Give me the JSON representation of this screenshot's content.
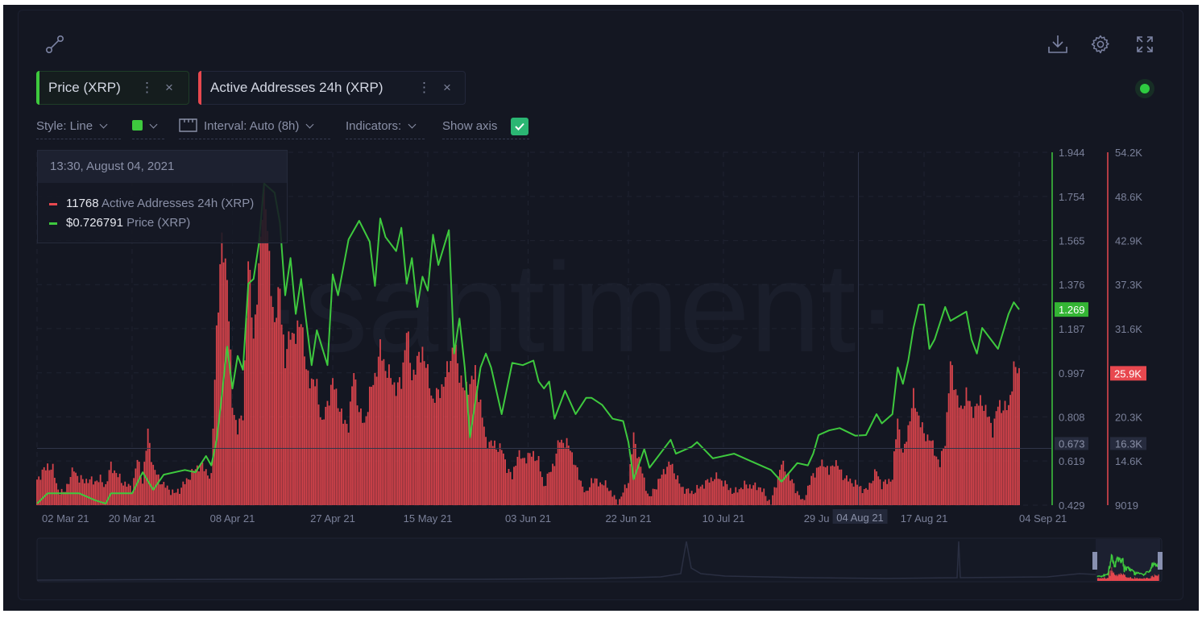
{
  "toolbar": {
    "tabs": [
      {
        "label": "Price (XRP)",
        "color": "#3ec93e"
      },
      {
        "label": "Active Addresses 24h (XRP)",
        "color": "#e8484f"
      }
    ],
    "more_glyph": "⋮",
    "close_glyph": "×",
    "style_label": "Style: Line",
    "series_color": "#3ec93e",
    "interval_label": "Interval: Auto (8h)",
    "indicators_label": "Indicators:",
    "show_axis_label": "Show axis",
    "show_axis_checked": true,
    "icons": [
      "connect-icon",
      "download-icon",
      "gear-icon",
      "fullscreen-icon",
      "status-dot-icon"
    ],
    "status_color": "#2ecc40"
  },
  "watermark": "·santiment·",
  "tooltip": {
    "date": "13:30, August 04, 2021",
    "rows": [
      {
        "value": "11768",
        "name": "Active Addresses 24h (XRP)",
        "color": "#e8484f"
      },
      {
        "value": "$0.726791",
        "name": "Price (XRP)",
        "color": "#3ec93e"
      }
    ]
  },
  "crosshair": {
    "date_label": "04 Aug 21",
    "price_label": "0.673",
    "active_label": "16.3K"
  },
  "chart_data": {
    "type": "line+bar",
    "title": "",
    "x_range": [
      "2021-03-02",
      "2021-09-04"
    ],
    "x_ticks": [
      {
        "date": "2021-03-02",
        "label": "02 Mar 21"
      },
      {
        "date": "2021-03-20",
        "label": "20 Mar 21"
      },
      {
        "date": "2021-04-08",
        "label": "08 Apr 21"
      },
      {
        "date": "2021-04-27",
        "label": "27 Apr 21"
      },
      {
        "date": "2021-05-15",
        "label": "15 May 21"
      },
      {
        "date": "2021-06-03",
        "label": "03 Jun 21"
      },
      {
        "date": "2021-06-22",
        "label": "22 Jun 21"
      },
      {
        "date": "2021-07-10",
        "label": "10 Jul 21"
      },
      {
        "date": "2021-07-29",
        "label": "29 Ju"
      },
      {
        "date": "2021-08-17",
        "label": "17 Aug 21"
      },
      {
        "date": "2021-09-04",
        "label": "04 Sep 21"
      }
    ],
    "grid": true,
    "series": [
      {
        "name": "Price (XRP)",
        "type": "line",
        "color": "#3ec93e",
        "axis": "left-of-right",
        "ylim": [
          0.429,
          1.944
        ],
        "ticks": [
          "1.944",
          "1.754",
          "1.565",
          "1.376",
          "1.187",
          "0.997",
          "0.808",
          "0.619",
          "0.429"
        ],
        "last_label": "1.269",
        "points": [
          [
            "2021-03-02",
            0.436
          ],
          [
            "2021-03-04",
            0.48
          ],
          [
            "2021-03-10",
            0.48
          ],
          [
            "2021-03-13",
            0.45
          ],
          [
            "2021-03-15",
            0.436
          ],
          [
            "2021-03-16",
            0.48
          ],
          [
            "2021-03-20",
            0.48
          ],
          [
            "2021-03-22",
            0.57
          ],
          [
            "2021-03-24",
            0.495
          ],
          [
            "2021-03-26",
            0.56
          ],
          [
            "2021-03-30",
            0.58
          ],
          [
            "2021-04-01",
            0.57
          ],
          [
            "2021-04-03",
            0.64
          ],
          [
            "2021-04-04",
            0.6
          ],
          [
            "2021-04-05",
            0.706
          ],
          [
            "2021-04-06",
            0.9
          ],
          [
            "2021-04-07",
            1.11
          ],
          [
            "2021-04-08",
            0.93
          ],
          [
            "2021-04-09",
            1.07
          ],
          [
            "2021-04-10",
            1.01
          ],
          [
            "2021-04-11",
            1.38
          ],
          [
            "2021-04-12",
            1.4
          ],
          [
            "2021-04-13",
            1.55
          ],
          [
            "2021-04-14",
            1.81
          ],
          [
            "2021-04-16",
            1.77
          ],
          [
            "2021-04-17",
            1.64
          ],
          [
            "2021-04-18",
            1.33
          ],
          [
            "2021-04-19",
            1.49
          ],
          [
            "2021-04-20",
            1.25
          ],
          [
            "2021-04-21",
            1.4
          ],
          [
            "2021-04-23",
            1.03
          ],
          [
            "2021-04-24",
            1.18
          ],
          [
            "2021-04-26",
            1.03
          ],
          [
            "2021-04-27",
            1.42
          ],
          [
            "2021-04-28",
            1.33
          ],
          [
            "2021-04-30",
            1.57
          ],
          [
            "2021-05-02",
            1.65
          ],
          [
            "2021-05-04",
            1.56
          ],
          [
            "2021-05-05",
            1.37
          ],
          [
            "2021-05-06",
            1.66
          ],
          [
            "2021-05-07",
            1.58
          ],
          [
            "2021-05-09",
            1.52
          ],
          [
            "2021-05-10",
            1.62
          ],
          [
            "2021-05-11",
            1.38
          ],
          [
            "2021-05-12",
            1.49
          ],
          [
            "2021-05-13",
            1.28
          ],
          [
            "2021-05-14",
            1.41
          ],
          [
            "2021-05-15",
            1.35
          ],
          [
            "2021-05-16",
            1.59
          ],
          [
            "2021-05-17",
            1.46
          ],
          [
            "2021-05-19",
            1.61
          ],
          [
            "2021-05-20",
            1.08
          ],
          [
            "2021-05-21",
            1.23
          ],
          [
            "2021-05-22",
            1.02
          ],
          [
            "2021-05-23",
            0.72
          ],
          [
            "2021-05-25",
            1.02
          ],
          [
            "2021-05-26",
            1.08
          ],
          [
            "2021-05-27",
            1.02
          ],
          [
            "2021-05-29",
            0.82
          ],
          [
            "2021-05-31",
            1.04
          ],
          [
            "2021-06-02",
            1.03
          ],
          [
            "2021-06-04",
            1.05
          ],
          [
            "2021-06-05",
            0.96
          ],
          [
            "2021-06-06",
            0.93
          ],
          [
            "2021-06-07",
            0.96
          ],
          [
            "2021-06-08",
            0.8
          ],
          [
            "2021-06-10",
            0.92
          ],
          [
            "2021-06-12",
            0.82
          ],
          [
            "2021-06-14",
            0.89
          ],
          [
            "2021-06-15",
            0.89
          ],
          [
            "2021-06-17",
            0.86
          ],
          [
            "2021-06-19",
            0.8
          ],
          [
            "2021-06-21",
            0.79
          ],
          [
            "2021-06-22",
            0.7
          ],
          [
            "2021-06-23",
            0.54
          ],
          [
            "2021-06-25",
            0.67
          ],
          [
            "2021-06-26",
            0.59
          ],
          [
            "2021-06-30",
            0.71
          ],
          [
            "2021-07-01",
            0.65
          ],
          [
            "2021-07-04",
            0.68
          ],
          [
            "2021-07-05",
            0.7
          ],
          [
            "2021-07-08",
            0.63
          ],
          [
            "2021-07-12",
            0.65
          ],
          [
            "2021-07-15",
            0.62
          ],
          [
            "2021-07-19",
            0.58
          ],
          [
            "2021-07-21",
            0.53
          ],
          [
            "2021-07-24",
            0.61
          ],
          [
            "2021-07-26",
            0.6
          ],
          [
            "2021-07-27",
            0.65
          ],
          [
            "2021-07-28",
            0.73
          ],
          [
            "2021-07-30",
            0.75
          ],
          [
            "2021-08-01",
            0.76
          ],
          [
            "2021-08-04",
            0.727
          ],
          [
            "2021-08-06",
            0.73
          ],
          [
            "2021-08-08",
            0.82
          ],
          [
            "2021-08-09",
            0.78
          ],
          [
            "2021-08-11",
            0.82
          ],
          [
            "2021-08-12",
            1.02
          ],
          [
            "2021-08-13",
            0.95
          ],
          [
            "2021-08-14",
            1.05
          ],
          [
            "2021-08-15",
            1.19
          ],
          [
            "2021-08-16",
            1.29
          ],
          [
            "2021-08-17",
            1.29
          ],
          [
            "2021-08-18",
            1.1
          ],
          [
            "2021-08-19",
            1.14
          ],
          [
            "2021-08-21",
            1.28
          ],
          [
            "2021-08-22",
            1.22
          ],
          [
            "2021-08-25",
            1.26
          ],
          [
            "2021-08-26",
            1.14
          ],
          [
            "2021-08-27",
            1.08
          ],
          [
            "2021-08-28",
            1.19
          ],
          [
            "2021-08-31",
            1.1
          ],
          [
            "2021-09-02",
            1.25
          ],
          [
            "2021-09-03",
            1.3
          ],
          [
            "2021-09-04",
            1.269
          ]
        ]
      },
      {
        "name": "Active Addresses 24h (XRP)",
        "type": "bar",
        "color": "#e8484f",
        "axis": "right",
        "ylim": [
          9019,
          54200
        ],
        "ticks": [
          "54.2K",
          "48.6K",
          "42.9K",
          "37.3K",
          "31.6K",
          "25.9K",
          "20.3K",
          "14.6K",
          "9019"
        ],
        "last_label": "25.9K",
        "points": [
          [
            "2021-03-02",
            12300
          ],
          [
            "2021-03-04",
            14100
          ],
          [
            "2021-03-05",
            13600
          ],
          [
            "2021-03-06",
            11000
          ],
          [
            "2021-03-07",
            10500
          ],
          [
            "2021-03-09",
            13700
          ],
          [
            "2021-03-10",
            12300
          ],
          [
            "2021-03-13",
            12100
          ],
          [
            "2021-03-14",
            12300
          ],
          [
            "2021-03-15",
            11500
          ],
          [
            "2021-03-16",
            14100
          ],
          [
            "2021-03-18",
            12100
          ],
          [
            "2021-03-20",
            11100
          ],
          [
            "2021-03-21",
            14900
          ],
          [
            "2021-03-22",
            12100
          ],
          [
            "2021-03-23",
            18300
          ],
          [
            "2021-03-24",
            13900
          ],
          [
            "2021-03-25",
            12500
          ],
          [
            "2021-03-26",
            11600
          ],
          [
            "2021-03-28",
            10500
          ],
          [
            "2021-03-29",
            11000
          ],
          [
            "2021-03-31",
            12800
          ],
          [
            "2021-04-01",
            13700
          ],
          [
            "2021-04-02",
            14200
          ],
          [
            "2021-04-03",
            13400
          ],
          [
            "2021-04-04",
            12500
          ],
          [
            "2021-04-05",
            31700
          ],
          [
            "2021-04-06",
            42500
          ],
          [
            "2021-04-07",
            38800
          ],
          [
            "2021-04-08",
            21800
          ],
          [
            "2021-04-09",
            18800
          ],
          [
            "2021-04-10",
            20600
          ],
          [
            "2021-04-11",
            40400
          ],
          [
            "2021-04-12",
            30700
          ],
          [
            "2021-04-13",
            38300
          ],
          [
            "2021-04-14",
            52000
          ],
          [
            "2021-04-15",
            39700
          ],
          [
            "2021-04-16",
            32200
          ],
          [
            "2021-04-17",
            36800
          ],
          [
            "2021-04-18",
            27000
          ],
          [
            "2021-04-19",
            31700
          ],
          [
            "2021-04-20",
            30100
          ],
          [
            "2021-04-21",
            33500
          ],
          [
            "2021-04-22",
            25900
          ],
          [
            "2021-04-24",
            24200
          ],
          [
            "2021-04-25",
            19300
          ],
          [
            "2021-04-26",
            22100
          ],
          [
            "2021-04-27",
            24900
          ],
          [
            "2021-04-29",
            19700
          ],
          [
            "2021-04-30",
            19300
          ],
          [
            "2021-05-01",
            26200
          ],
          [
            "2021-05-02",
            21100
          ],
          [
            "2021-05-03",
            19300
          ],
          [
            "2021-05-04",
            23200
          ],
          [
            "2021-05-05",
            25500
          ],
          [
            "2021-05-06",
            29000
          ],
          [
            "2021-05-07",
            26600
          ],
          [
            "2021-05-09",
            24000
          ],
          [
            "2021-05-10",
            24700
          ],
          [
            "2021-05-11",
            31700
          ],
          [
            "2021-05-12",
            25500
          ],
          [
            "2021-05-14",
            29000
          ],
          [
            "2021-05-16",
            22400
          ],
          [
            "2021-05-18",
            24500
          ],
          [
            "2021-05-20",
            29600
          ],
          [
            "2021-05-21",
            25900
          ],
          [
            "2021-05-22",
            23500
          ],
          [
            "2021-05-24",
            25900
          ],
          [
            "2021-05-25",
            21900
          ],
          [
            "2021-05-26",
            17300
          ],
          [
            "2021-05-29",
            16200
          ],
          [
            "2021-05-30",
            13900
          ],
          [
            "2021-05-31",
            12500
          ],
          [
            "2021-06-01",
            15600
          ],
          [
            "2021-06-02",
            14900
          ],
          [
            "2021-06-04",
            15600
          ],
          [
            "2021-06-05",
            14600
          ],
          [
            "2021-06-06",
            11500
          ],
          [
            "2021-06-08",
            14600
          ],
          [
            "2021-06-09",
            17500
          ],
          [
            "2021-06-11",
            16400
          ],
          [
            "2021-06-12",
            13900
          ],
          [
            "2021-06-14",
            10300
          ],
          [
            "2021-06-15",
            12300
          ],
          [
            "2021-06-18",
            11500
          ],
          [
            "2021-06-20",
            9200
          ],
          [
            "2021-06-22",
            12100
          ],
          [
            "2021-06-23",
            17700
          ],
          [
            "2021-06-25",
            12100
          ],
          [
            "2021-06-26",
            9900
          ],
          [
            "2021-06-29",
            13700
          ],
          [
            "2021-06-30",
            14400
          ],
          [
            "2021-07-02",
            11300
          ],
          [
            "2021-07-04",
            10600
          ],
          [
            "2021-07-08",
            12500
          ],
          [
            "2021-07-09",
            12600
          ],
          [
            "2021-07-12",
            10600
          ],
          [
            "2021-07-14",
            11600
          ],
          [
            "2021-07-17",
            11300
          ],
          [
            "2021-07-19",
            9200
          ],
          [
            "2021-07-21",
            14400
          ],
          [
            "2021-07-23",
            12000
          ],
          [
            "2021-07-25",
            9400
          ],
          [
            "2021-07-27",
            13000
          ],
          [
            "2021-07-29",
            14600
          ],
          [
            "2021-07-30",
            13100
          ],
          [
            "2021-07-31",
            14700
          ],
          [
            "2021-08-02",
            12500
          ],
          [
            "2021-08-04",
            11768
          ],
          [
            "2021-08-06",
            10800
          ],
          [
            "2021-08-08",
            13400
          ],
          [
            "2021-08-09",
            11600
          ],
          [
            "2021-08-11",
            12500
          ],
          [
            "2021-08-12",
            20300
          ],
          [
            "2021-08-13",
            15200
          ],
          [
            "2021-08-15",
            22800
          ],
          [
            "2021-08-17",
            18000
          ],
          [
            "2021-08-18",
            17700
          ],
          [
            "2021-08-20",
            14200
          ],
          [
            "2021-08-21",
            17300
          ],
          [
            "2021-08-22",
            27000
          ],
          [
            "2021-08-23",
            23900
          ],
          [
            "2021-08-24",
            20800
          ],
          [
            "2021-08-25",
            23500
          ],
          [
            "2021-08-26",
            21100
          ],
          [
            "2021-08-28",
            22400
          ],
          [
            "2021-08-30",
            18700
          ],
          [
            "2021-08-31",
            21800
          ],
          [
            "2021-09-02",
            21400
          ],
          [
            "2021-09-03",
            26600
          ],
          [
            "2021-09-04",
            25900
          ]
        ]
      }
    ]
  }
}
